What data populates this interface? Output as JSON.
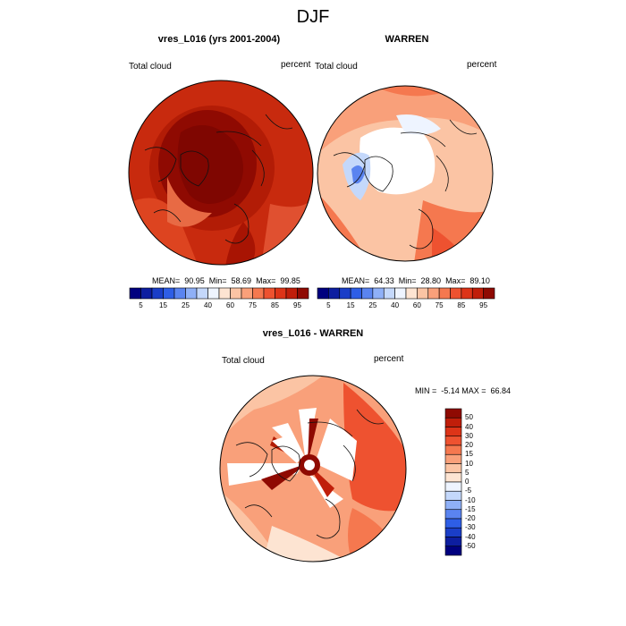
{
  "title": "DJF",
  "panels": [
    {
      "title": "vres_L016 (yrs 2001-2004)",
      "left_label": "Total cloud",
      "right_label": "percent",
      "stats": "MEAN=  90.95  Min=  58.69  Max=  99.85"
    },
    {
      "title": "WARREN",
      "left_label": "Total cloud",
      "right_label": "percent",
      "stats": "MEAN=  64.33  Min=  28.80  Max=  89.10"
    },
    {
      "title": "vres_L016 - WARREN",
      "left_label": "Total cloud",
      "right_label": "percent",
      "stats": "MIN =  -5.14 MAX =  66.84"
    }
  ],
  "abs_colorbar": {
    "colors": [
      "#00007f",
      "#0d1ea0",
      "#1a3ec8",
      "#2e5ee6",
      "#5a84f0",
      "#8fb0f7",
      "#c4d8fb",
      "#eef4ff",
      "#fde4d2",
      "#fbc4a4",
      "#f9a07a",
      "#f5784f",
      "#ee5230",
      "#dd3418",
      "#c01e0a",
      "#8f0a02"
    ],
    "tick_labels": [
      "5",
      "15",
      "25",
      "40",
      "60",
      "75",
      "85",
      "95"
    ]
  },
  "diff_colorbar": {
    "colors": [
      "#8f0a02",
      "#c01e0a",
      "#dd3418",
      "#ee5230",
      "#f5784f",
      "#f9a07a",
      "#fbc4a4",
      "#fde4d2",
      "#eef4ff",
      "#c4d8fb",
      "#8fb0f7",
      "#5a84f0",
      "#2e5ee6",
      "#1a3ec8",
      "#0d1ea0",
      "#00007f"
    ],
    "tick_labels": [
      "50",
      "40",
      "30",
      "20",
      "15",
      "10",
      "5",
      "0",
      "-5",
      "-10",
      "-15",
      "-20",
      "-30",
      "-40",
      "-50"
    ]
  }
}
